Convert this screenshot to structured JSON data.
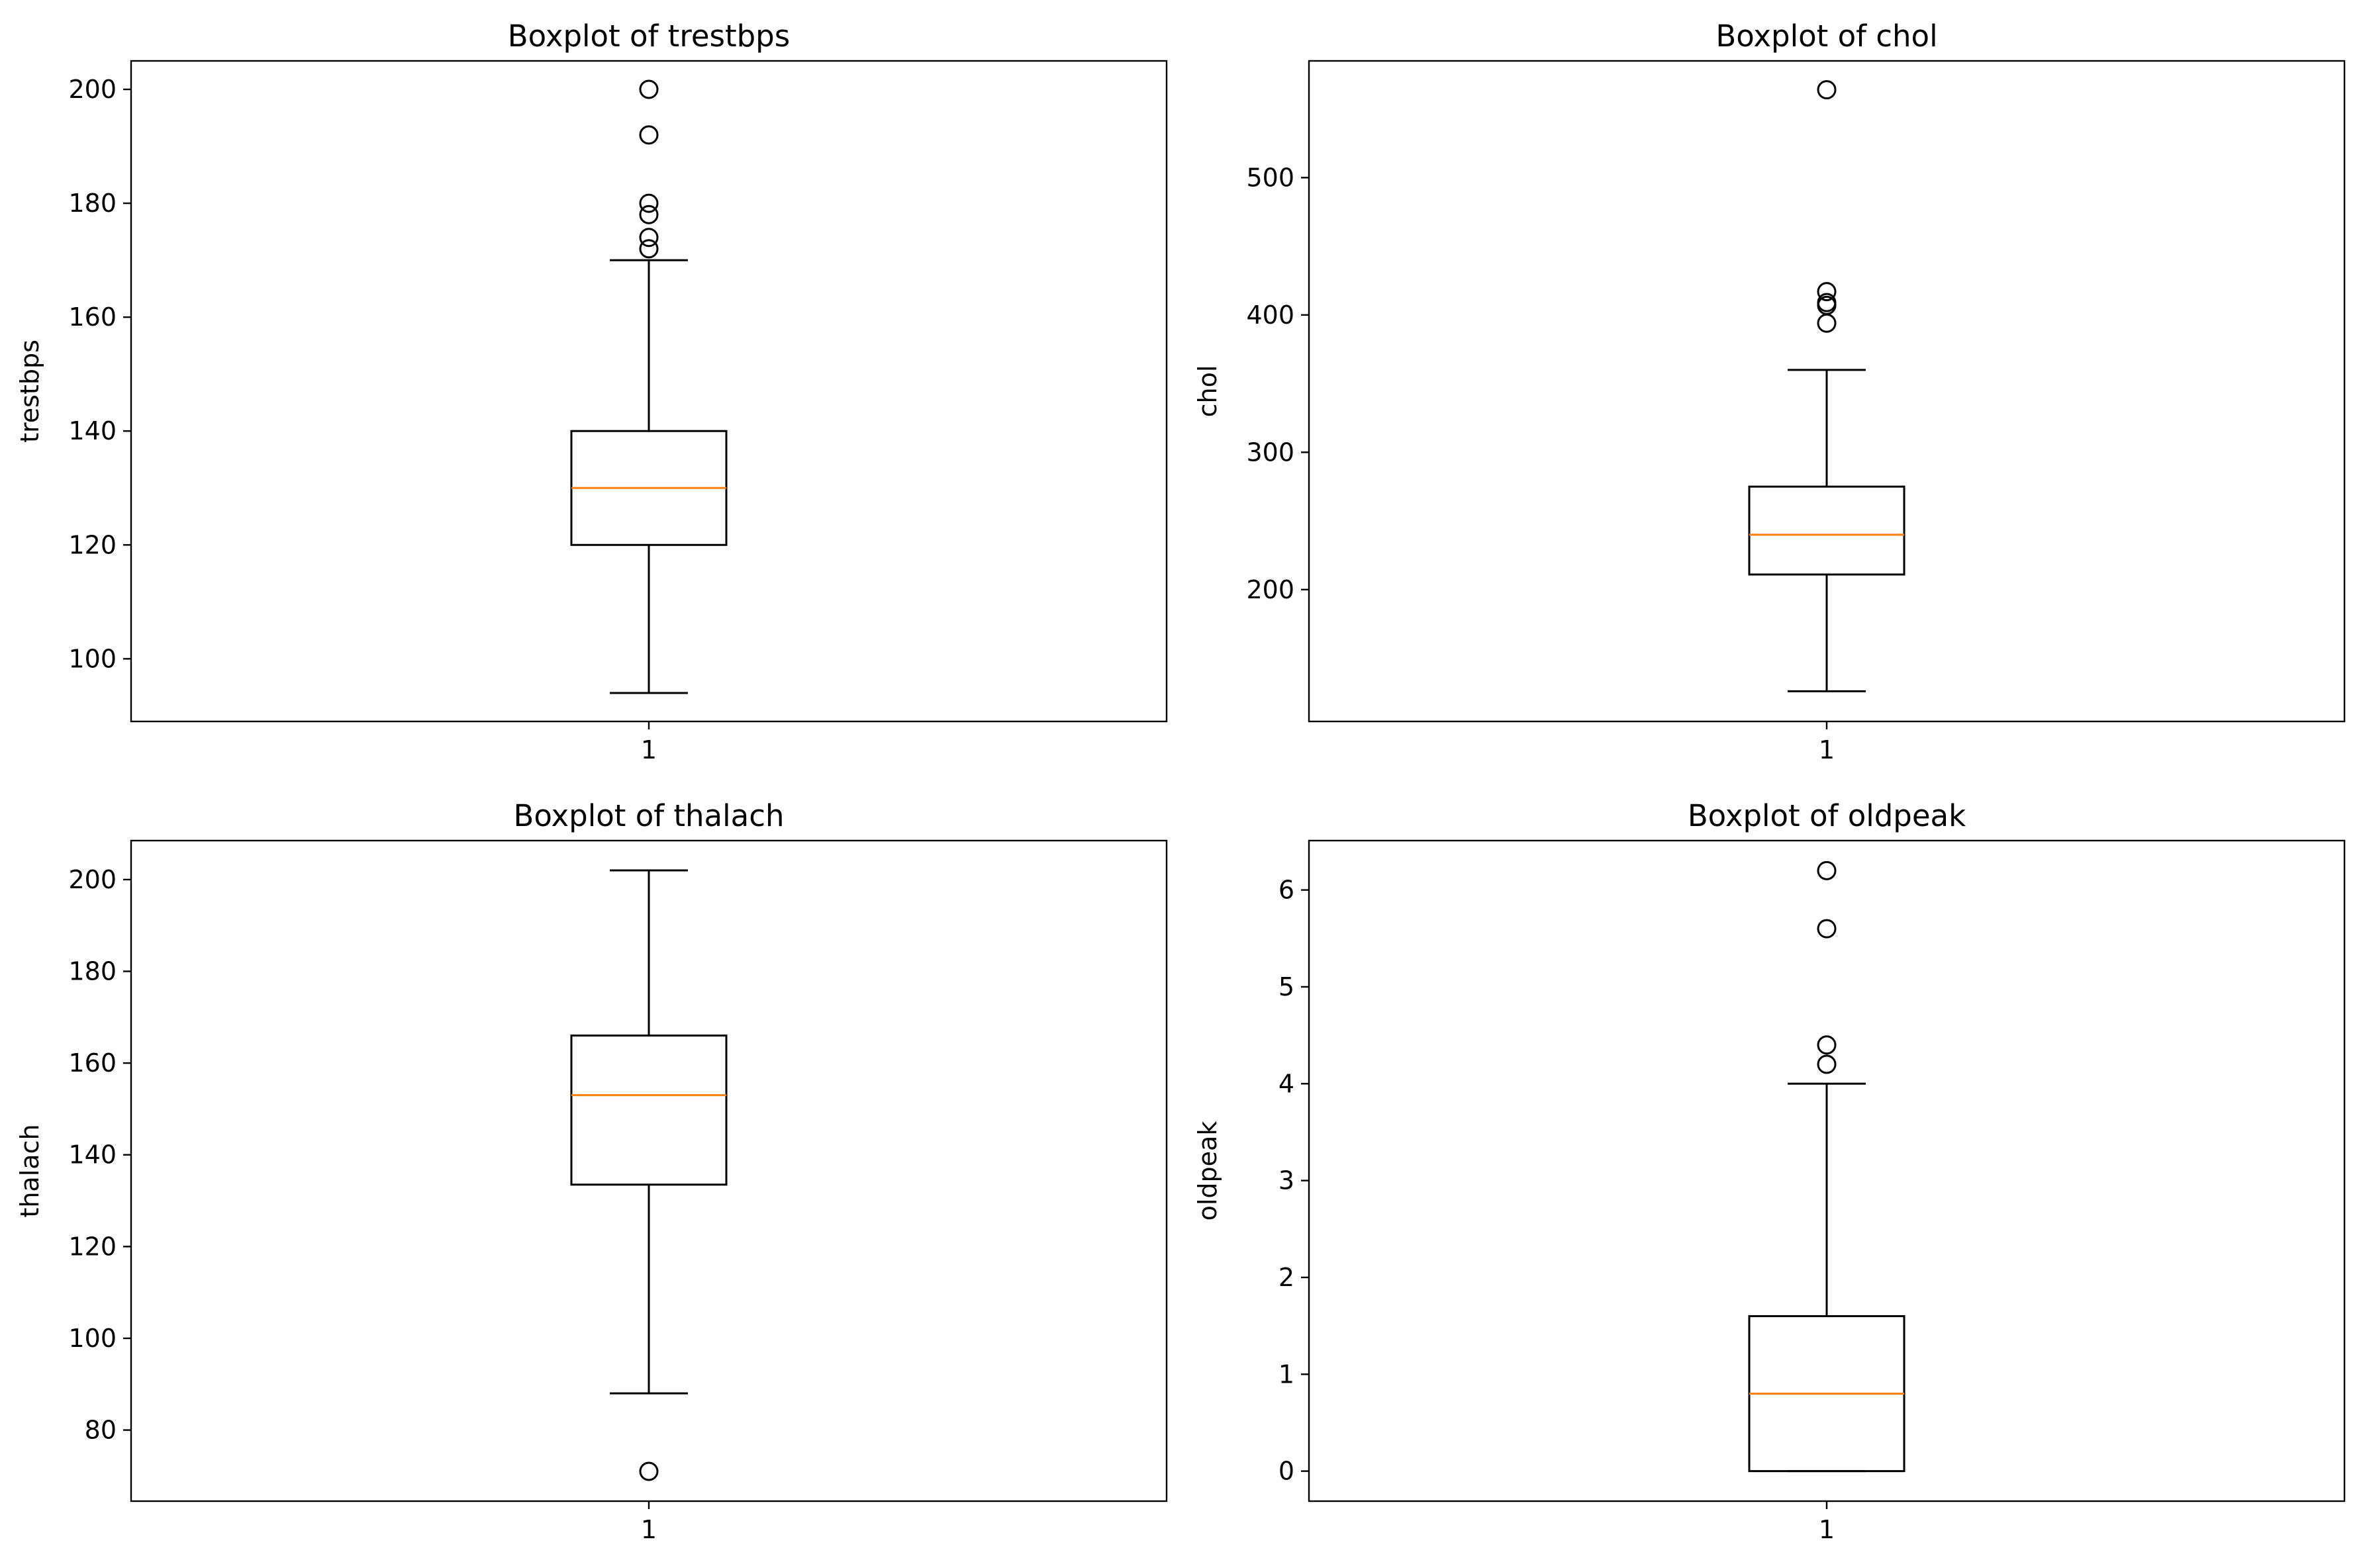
{
  "colors": {
    "median": "#ff7f0e",
    "stroke": "#000000",
    "background": "#ffffff"
  },
  "chart_data": [
    {
      "type": "box",
      "title": "Boxplot of trestbps",
      "xlabel": "",
      "ylabel": "trestbps",
      "categories": [
        "1"
      ],
      "ylim": [
        89,
        205
      ],
      "yticks": [
        100,
        120,
        140,
        160,
        180,
        200
      ],
      "whisker_low": 94,
      "q1": 120,
      "median": 130,
      "q3": 140,
      "whisker_high": 170,
      "outliers": [
        172,
        174,
        178,
        180,
        192,
        200
      ]
    },
    {
      "type": "box",
      "title": "Boxplot of chol",
      "xlabel": "",
      "ylabel": "chol",
      "categories": [
        "1"
      ],
      "ylim": [
        104,
        585
      ],
      "yticks": [
        200,
        300,
        400,
        500
      ],
      "whisker_low": 126,
      "q1": 211,
      "median": 240,
      "q3": 275,
      "whisker_high": 360,
      "outliers": [
        394,
        407,
        409,
        417,
        564
      ]
    },
    {
      "type": "box",
      "title": "Boxplot of thalach",
      "xlabel": "",
      "ylabel": "thalach",
      "categories": [
        "1"
      ],
      "ylim": [
        64.5,
        208.5
      ],
      "yticks": [
        80,
        100,
        120,
        140,
        160,
        180,
        200
      ],
      "whisker_low": 88,
      "q1": 133.5,
      "median": 153,
      "q3": 166,
      "whisker_high": 202,
      "outliers": [
        71
      ]
    },
    {
      "type": "box",
      "title": "Boxplot of oldpeak",
      "xlabel": "",
      "ylabel": "oldpeak",
      "categories": [
        "1"
      ],
      "ylim": [
        -0.31,
        6.51
      ],
      "yticks": [
        0,
        1,
        2,
        3,
        4,
        5,
        6
      ],
      "whisker_low": 0,
      "q1": 0,
      "median": 0.8,
      "q3": 1.6,
      "whisker_high": 4.0,
      "outliers": [
        4.2,
        4.4,
        5.6,
        6.2
      ]
    }
  ]
}
